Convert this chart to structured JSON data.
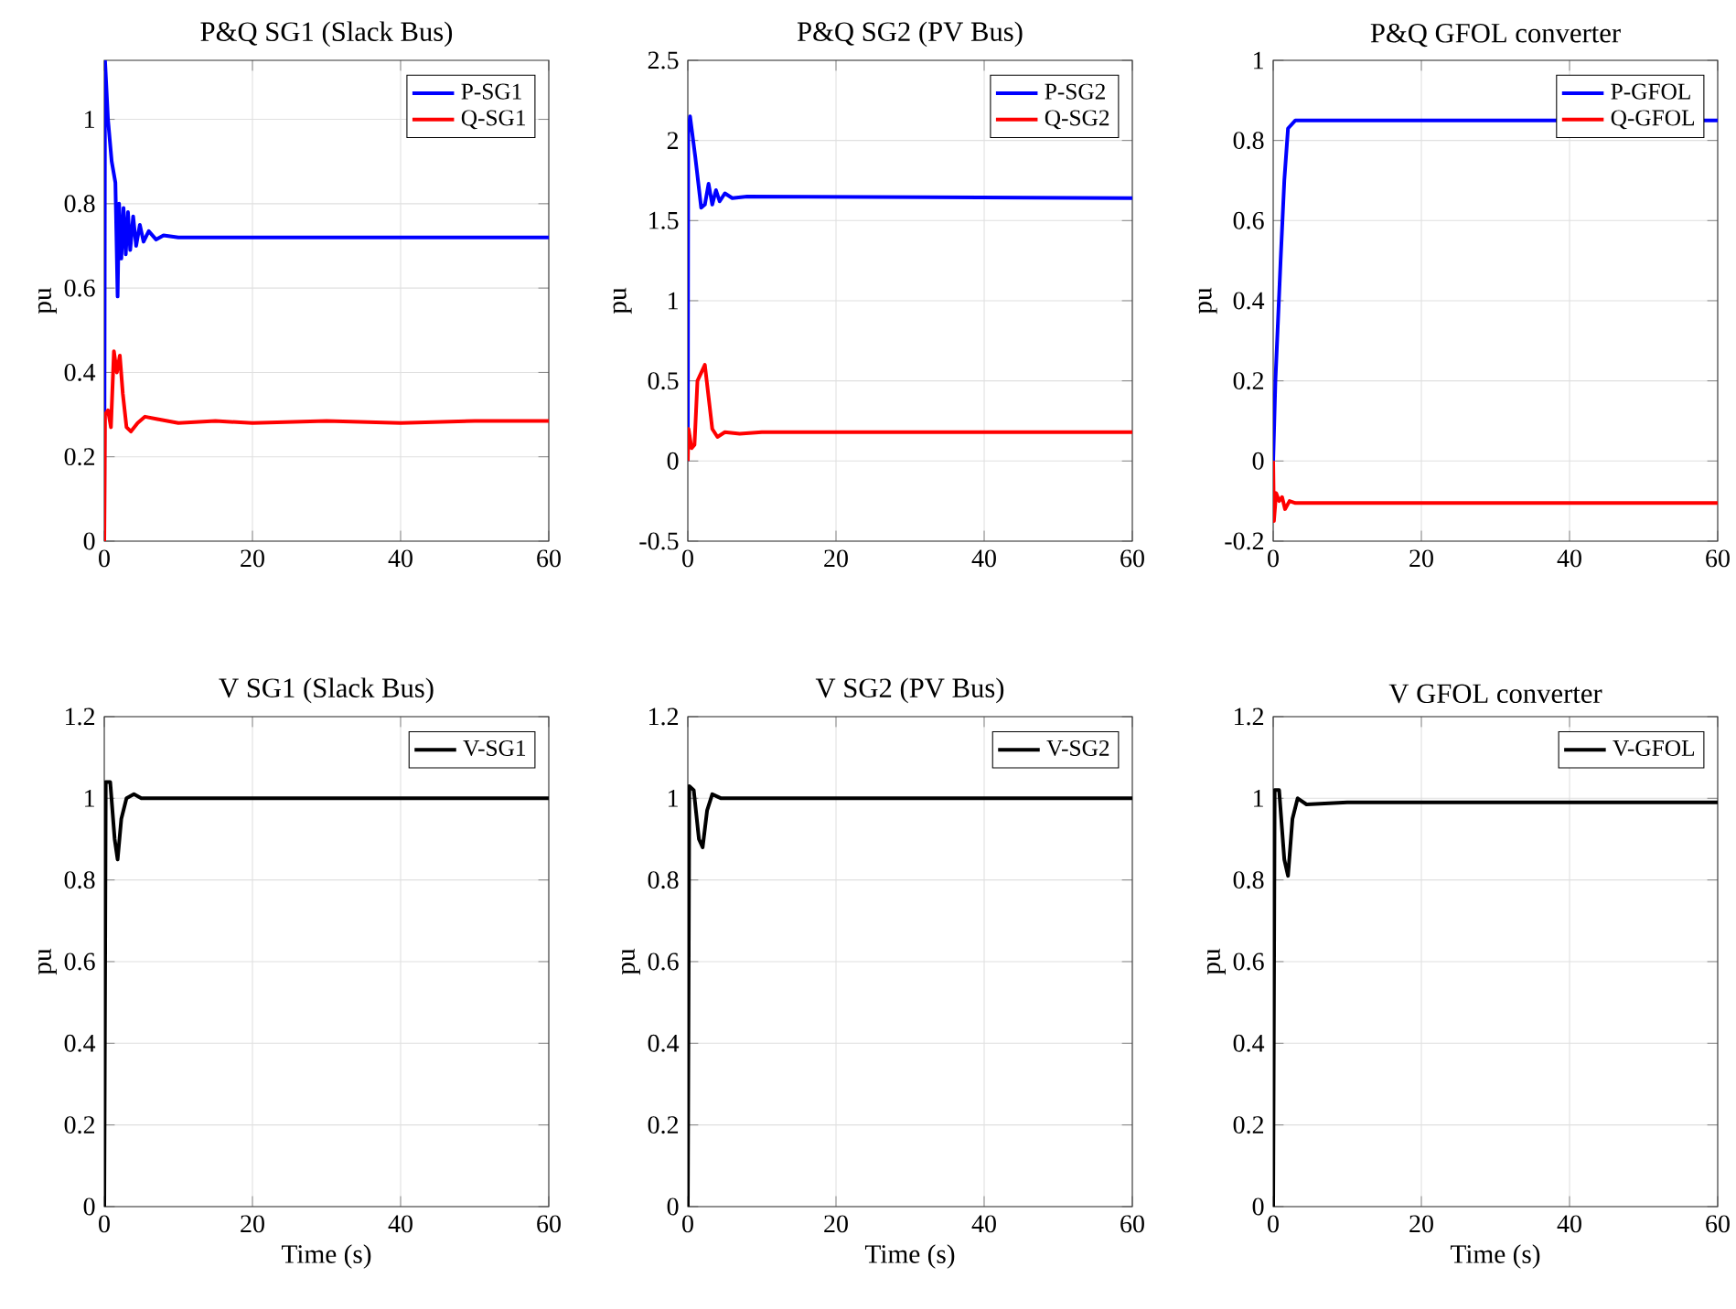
{
  "chart_data": [
    {
      "type": "line",
      "title": "P&Q SG1 (Slack Bus)",
      "ylabel": "pu",
      "xlim": [
        0,
        60
      ],
      "xticks": [
        0,
        20,
        40,
        60
      ],
      "ylim": [
        0,
        1.14
      ],
      "yticks": [
        0,
        0.2,
        0.4,
        0.6,
        0.8,
        1
      ],
      "grid": true,
      "legend": "top right",
      "series": [
        {
          "name": "P-SG1",
          "color": "#0000ff",
          "x": [
            0,
            0.1,
            0.5,
            1.0,
            1.5,
            1.8,
            2.0,
            2.3,
            2.6,
            2.9,
            3.2,
            3.5,
            3.9,
            4.3,
            4.8,
            5.3,
            6,
            7,
            8,
            10,
            60
          ],
          "values": [
            0,
            1.14,
            1.0,
            0.9,
            0.85,
            0.58,
            0.8,
            0.67,
            0.79,
            0.68,
            0.78,
            0.69,
            0.77,
            0.7,
            0.75,
            0.71,
            0.735,
            0.715,
            0.725,
            0.72,
            0.72
          ]
        },
        {
          "name": "Q-SG1",
          "color": "#ff0000",
          "x": [
            0,
            0.1,
            0.5,
            0.9,
            1.3,
            1.7,
            2.1,
            2.5,
            3,
            3.6,
            4.5,
            5.5,
            7,
            10,
            15,
            20,
            30,
            40,
            50,
            60
          ],
          "values": [
            0,
            0.3,
            0.31,
            0.27,
            0.45,
            0.4,
            0.44,
            0.35,
            0.27,
            0.26,
            0.28,
            0.295,
            0.29,
            0.28,
            0.285,
            0.28,
            0.285,
            0.28,
            0.285,
            0.285
          ]
        }
      ]
    },
    {
      "type": "line",
      "title": "P&Q SG2 (PV Bus)",
      "ylabel": "pu",
      "xlim": [
        0,
        60
      ],
      "xticks": [
        0,
        20,
        40,
        60
      ],
      "ylim": [
        -0.5,
        2.5
      ],
      "yticks": [
        -0.5,
        0,
        0.5,
        1,
        1.5,
        2,
        2.5
      ],
      "grid": true,
      "legend": "top right",
      "series": [
        {
          "name": "P-SG2",
          "color": "#0000ff",
          "x": [
            0,
            0.05,
            0.3,
            1,
            1.8,
            2.3,
            2.8,
            3.3,
            3.8,
            4.3,
            5,
            6,
            8,
            60
          ],
          "values": [
            0,
            2.05,
            2.15,
            1.9,
            1.58,
            1.6,
            1.73,
            1.6,
            1.69,
            1.62,
            1.67,
            1.64,
            1.65,
            1.64
          ]
        },
        {
          "name": "Q-SG2",
          "color": "#ff0000",
          "x": [
            0,
            0.1,
            0.5,
            0.9,
            1.3,
            1.8,
            2.3,
            2.8,
            3.3,
            4,
            5,
            7,
            10,
            60
          ],
          "values": [
            0,
            0.2,
            0.08,
            0.1,
            0.5,
            0.55,
            0.6,
            0.4,
            0.2,
            0.15,
            0.18,
            0.17,
            0.18,
            0.18
          ]
        }
      ]
    },
    {
      "type": "line",
      "title": "P&Q GFOL converter",
      "ylabel": "pu",
      "xlim": [
        0,
        60
      ],
      "xticks": [
        0,
        20,
        40,
        60
      ],
      "ylim": [
        -0.2,
        1
      ],
      "yticks": [
        -0.2,
        0,
        0.2,
        0.4,
        0.6,
        0.8,
        1
      ],
      "grid": true,
      "legend": "top right",
      "series": [
        {
          "name": "P-GFOL",
          "color": "#0000ff",
          "x": [
            0,
            0.3,
            1,
            1.5,
            2,
            3,
            60
          ],
          "values": [
            0,
            0.2,
            0.5,
            0.7,
            0.83,
            0.85,
            0.85
          ]
        },
        {
          "name": "Q-GFOL",
          "color": "#ff0000",
          "x": [
            0,
            0.1,
            0.4,
            0.8,
            1.2,
            1.6,
            2.2,
            3,
            60
          ],
          "values": [
            0,
            -0.15,
            -0.08,
            -0.1,
            -0.09,
            -0.12,
            -0.1,
            -0.105,
            -0.105
          ]
        }
      ]
    },
    {
      "type": "line",
      "title": "V SG1 (Slack Bus)",
      "xlabel": "Time (s)",
      "ylabel": "pu",
      "xlim": [
        0,
        60
      ],
      "xticks": [
        0,
        20,
        40,
        60
      ],
      "ylim": [
        0,
        1.2
      ],
      "yticks": [
        0,
        0.2,
        0.4,
        0.6,
        0.8,
        1,
        1.2
      ],
      "grid": true,
      "legend": "top right",
      "series": [
        {
          "name": "V-SG1",
          "color": "#000000",
          "x": [
            0,
            0.2,
            0.8,
            1.4,
            1.8,
            2.3,
            3,
            4,
            5,
            60
          ],
          "values": [
            0,
            1.04,
            1.04,
            0.9,
            0.85,
            0.95,
            1.0,
            1.01,
            1.0,
            1.0
          ]
        }
      ]
    },
    {
      "type": "line",
      "title": "V SG2 (PV Bus)",
      "xlabel": "Time (s)",
      "ylabel": "pu",
      "xlim": [
        0,
        60
      ],
      "xticks": [
        0,
        20,
        40,
        60
      ],
      "ylim": [
        0,
        1.2
      ],
      "yticks": [
        0,
        0.2,
        0.4,
        0.6,
        0.8,
        1,
        1.2
      ],
      "grid": true,
      "legend": "top right",
      "series": [
        {
          "name": "V-SG2",
          "color": "#000000",
          "x": [
            0,
            0.2,
            0.8,
            1.5,
            2,
            2.6,
            3.3,
            4.5,
            60
          ],
          "values": [
            0,
            1.03,
            1.02,
            0.9,
            0.88,
            0.97,
            1.01,
            1.0,
            1.0
          ]
        }
      ]
    },
    {
      "type": "line",
      "title": "V GFOL converter",
      "xlabel": "Time (s)",
      "ylabel": "pu",
      "xlim": [
        0,
        60
      ],
      "xticks": [
        0,
        20,
        40,
        60
      ],
      "ylim": [
        0,
        1.2
      ],
      "yticks": [
        0,
        0.2,
        0.4,
        0.6,
        0.8,
        1,
        1.2
      ],
      "grid": true,
      "legend": "top right",
      "series": [
        {
          "name": "V-GFOL",
          "color": "#000000",
          "x": [
            0,
            0.2,
            0.8,
            1.5,
            2,
            2.6,
            3.3,
            4.5,
            10,
            60
          ],
          "values": [
            0,
            1.02,
            1.02,
            0.85,
            0.81,
            0.95,
            1.0,
            0.985,
            0.99,
            0.99
          ]
        }
      ]
    }
  ]
}
